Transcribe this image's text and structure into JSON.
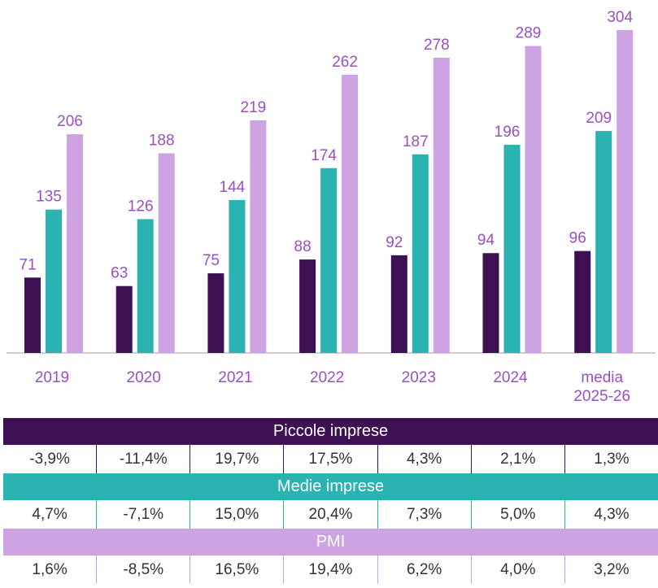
{
  "colors": {
    "piccole": "#3c1053",
    "medie": "#2ab3b0",
    "pmi": "#cda3e3",
    "label_text": "#9b4fc4",
    "axis": "#bfbfbf"
  },
  "chart_data": {
    "type": "bar",
    "categories": [
      "2019",
      "2020",
      "2021",
      "2022",
      "2023",
      "2024",
      "media\n2025-26"
    ],
    "category_lines": [
      [
        "2019"
      ],
      [
        "2020"
      ],
      [
        "2021"
      ],
      [
        "2022"
      ],
      [
        "2023"
      ],
      [
        "2024"
      ],
      [
        "media",
        "2025-26"
      ]
    ],
    "series": [
      {
        "name": "Piccole imprese",
        "values": [
          71,
          63,
          75,
          88,
          92,
          94,
          96
        ]
      },
      {
        "name": "Medie imprese",
        "values": [
          135,
          126,
          144,
          174,
          187,
          196,
          209
        ]
      },
      {
        "name": "PMI",
        "values": [
          206,
          188,
          219,
          262,
          278,
          289,
          304
        ]
      }
    ],
    "ylim": [
      0,
      304
    ],
    "title": "",
    "xlabel": "",
    "ylabel": "",
    "grid": false
  },
  "table": {
    "sections": [
      {
        "key": "piccole",
        "title": "Piccole imprese",
        "values": [
          "-3,9%",
          "-11,4%",
          "19,7%",
          "17,5%",
          "4,3%",
          "2,1%",
          "1,3%"
        ]
      },
      {
        "key": "medie",
        "title": "Medie imprese",
        "values": [
          "4,7%",
          "-7,1%",
          "15,0%",
          "20,4%",
          "7,3%",
          "5,0%",
          "4,3%"
        ]
      },
      {
        "key": "pmi",
        "title": "PMI",
        "values": [
          "1,6%",
          "-8,5%",
          "16,5%",
          "19,4%",
          "6,2%",
          "4,0%",
          "3,2%"
        ]
      }
    ]
  }
}
